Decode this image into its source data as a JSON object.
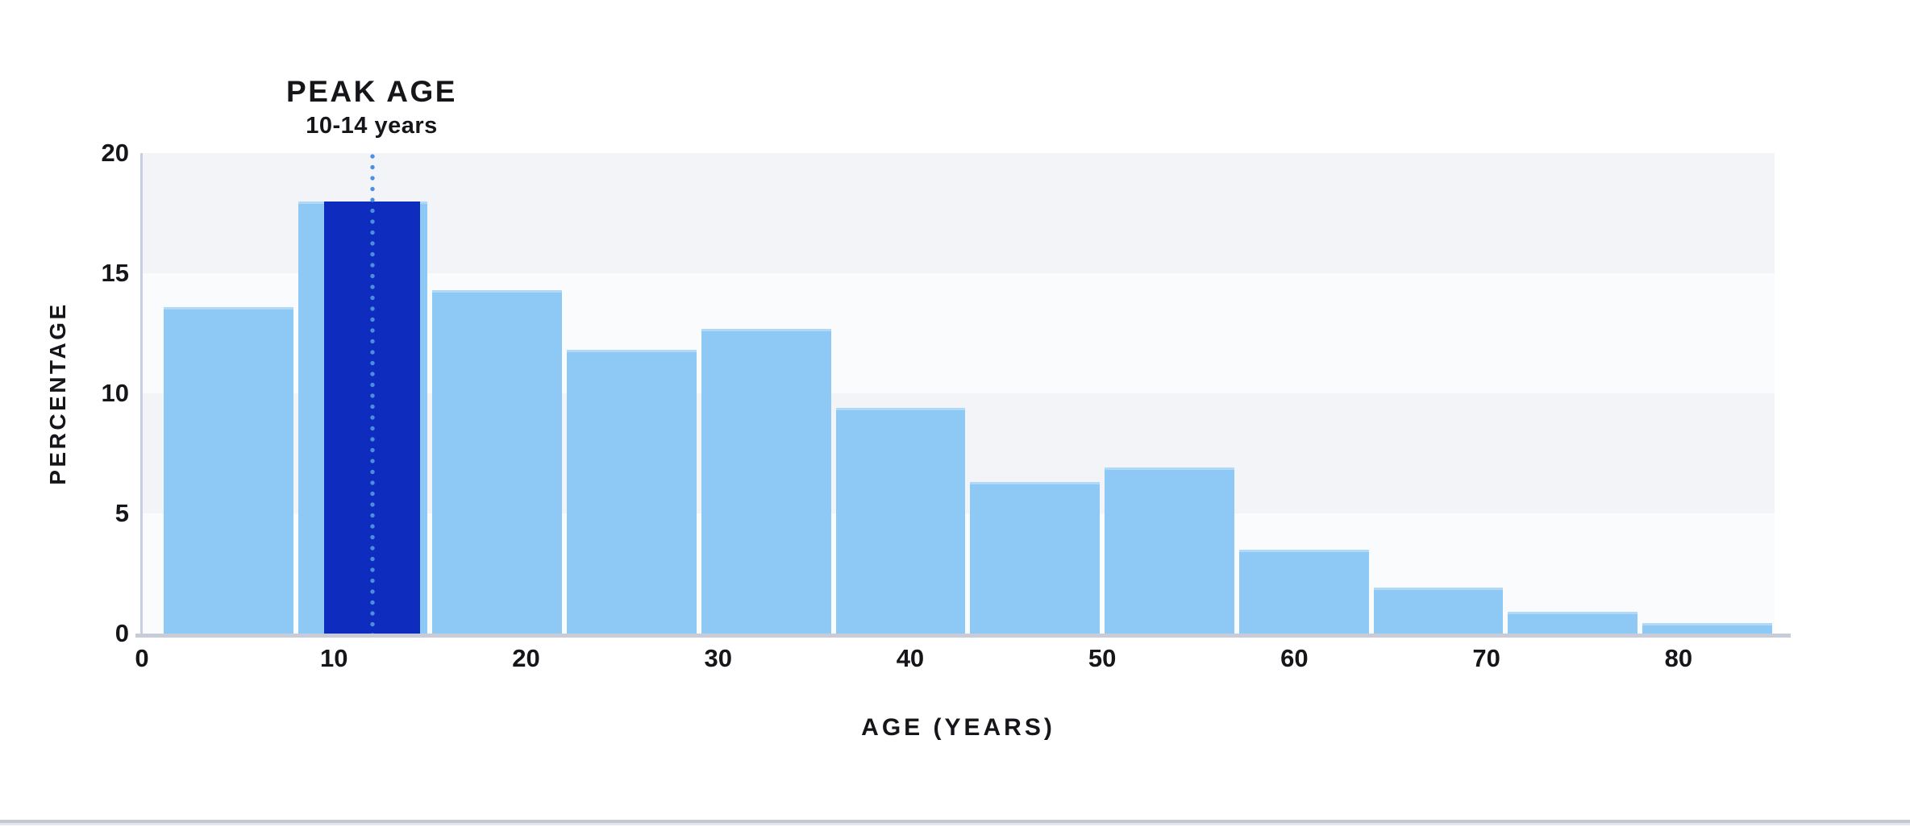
{
  "page": {
    "background": "#ffffff"
  },
  "chart_data": {
    "type": "bar",
    "subtype": "histogram",
    "annotation": {
      "title": "PEAK AGE",
      "subtitle": "10-14 years"
    },
    "xlabel": "AGE (YEARS)",
    "ylabel": "PERCENTAGE",
    "xlim": [
      0,
      85
    ],
    "ylim": [
      0,
      20
    ],
    "xticks": [
      0,
      10,
      20,
      30,
      40,
      50,
      60,
      70,
      80
    ],
    "yticks": [
      0,
      5,
      10,
      15,
      20
    ],
    "grid": "alternating-horizontal-bands",
    "legend": "none",
    "bins": [
      {
        "start": 1,
        "end": 8,
        "value": 13.6
      },
      {
        "start": 8,
        "end": 15,
        "value": 18.0
      },
      {
        "start": 15,
        "end": 22,
        "value": 14.3
      },
      {
        "start": 22,
        "end": 29,
        "value": 11.8
      },
      {
        "start": 29,
        "end": 36,
        "value": 12.7
      },
      {
        "start": 36,
        "end": 43,
        "value": 9.4
      },
      {
        "start": 43,
        "end": 50,
        "value": 6.3
      },
      {
        "start": 50,
        "end": 57,
        "value": 6.9
      },
      {
        "start": 57,
        "end": 64,
        "value": 3.5
      },
      {
        "start": 64,
        "end": 71,
        "value": 1.9
      },
      {
        "start": 71,
        "end": 78,
        "value": 0.9
      },
      {
        "start": 78,
        "end": 85,
        "value": 0.45
      }
    ],
    "highlight": {
      "label": "PEAK AGE",
      "sublabel": "10-14 years",
      "age_range_label": "10-14",
      "draw_start": 9.5,
      "draw_end": 14.5,
      "value": 18.0,
      "marker_age": 12.0
    },
    "colors": {
      "bar": "#8ec8f4",
      "highlight_bar": "#0e2cbe",
      "marker_dots": "#4a8fe0",
      "band_dark": "#f2f4f7",
      "band_light": "#fafbfd",
      "x_axis_line": "#c8ccd8",
      "y_axis_line": "#c9cee2",
      "text": "#15151a",
      "divider": "#c5c8d3"
    }
  }
}
